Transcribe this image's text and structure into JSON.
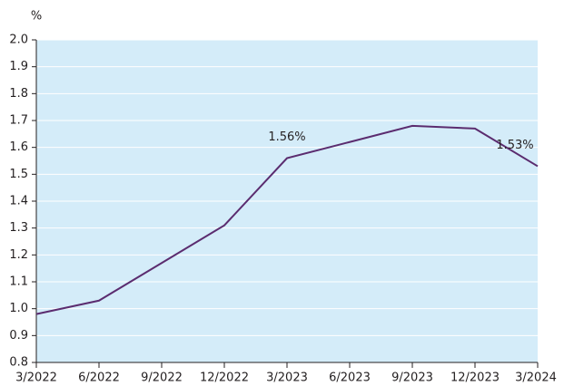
{
  "chart_data": {
    "type": "line",
    "y_label": "%",
    "categories": [
      "3/2022",
      "6/2022",
      "9/2022",
      "12/2022",
      "3/2023",
      "6/2023",
      "9/2023",
      "12/2023",
      "3/2024"
    ],
    "series": [
      {
        "color": "#5b2c6f",
        "values": [
          0.98,
          1.03,
          1.17,
          1.31,
          1.56,
          1.62,
          1.68,
          1.67,
          1.53
        ],
        "value_labels": [
          null,
          null,
          null,
          null,
          "1.56%",
          null,
          null,
          null,
          "1.53%"
        ]
      }
    ],
    "ylim": [
      0.8,
      2.0
    ],
    "yticks": [
      0.8,
      0.9,
      {
        "value": 1,
        "label": "1.0"
      },
      1.1,
      1.2,
      1.3,
      1.4,
      1.5,
      1.6,
      1.7,
      1.8,
      1.9,
      {
        "value": 2,
        "label": "2.0"
      }
    ],
    "grid": true,
    "background": "#d4ecf9"
  }
}
